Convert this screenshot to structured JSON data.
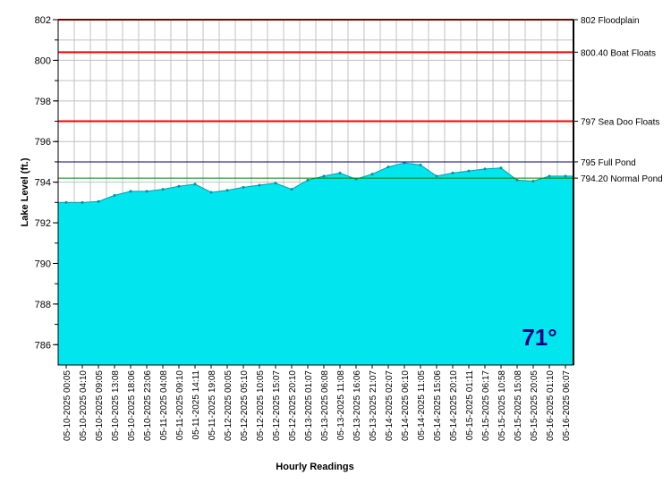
{
  "chart_data": {
    "type": "area",
    "xlabel": "Hourly Readings",
    "ylabel": "Lake Level (ft.)",
    "ylim": [
      785,
      802
    ],
    "yticks": [
      786,
      788,
      790,
      792,
      794,
      796,
      798,
      800,
      802
    ],
    "grid": true,
    "x_tick_labels": [
      "05-10-2025 00:05",
      "05-10-2025 04:10",
      "05-10-2025 09:05",
      "05-10-2025 13:08",
      "05-10-2025 18:06",
      "05-10-2025 23:06",
      "05-11-2025 04:08",
      "05-11-2025 09:10",
      "05-11-2025 14:11",
      "05-11-2025 19:08",
      "05-12-2025 00:05",
      "05-12-2025 05:10",
      "05-12-2025 10:05",
      "05-12-2025 15:07",
      "05-12-2025 20:10",
      "05-13-2025 01:07",
      "05-13-2025 06:08",
      "05-13-2025 11:08",
      "05-13-2025 16:06",
      "05-13-2025 21:07",
      "05-14-2025 02:07",
      "05-14-2025 06:10",
      "05-14-2025 11:05",
      "05-14-2025 15:06",
      "05-14-2025 20:10",
      "05-15-2025 01:11",
      "05-15-2025 06:17",
      "05-15-2025 10:58",
      "05-15-2025 15:08",
      "05-15-2025 20:05",
      "05-16-2025 01:10",
      "05-16-2025 06:07"
    ],
    "series": [
      {
        "color": "#00e5ee",
        "values": [
          793.0,
          793.0,
          793.05,
          793.35,
          793.55,
          793.55,
          793.65,
          793.8,
          793.9,
          793.5,
          793.6,
          793.75,
          793.85,
          793.95,
          793.65,
          794.1,
          794.3,
          794.45,
          794.15,
          794.4,
          794.75,
          794.95,
          794.85,
          794.3,
          794.45,
          794.55,
          794.65,
          794.7,
          794.1,
          794.05,
          794.3,
          794.3
        ]
      }
    ],
    "reference_lines": [
      {
        "value": 802,
        "label": "802 Floodplain",
        "color": "#ff0000"
      },
      {
        "value": 800.4,
        "label": "800.40 Boat Floats",
        "color": "#ff0000"
      },
      {
        "value": 797,
        "label": "797 Sea Doo Floats",
        "color": "#ff0000"
      },
      {
        "value": 795,
        "label": "795 Full Pond",
        "color": "#000080"
      },
      {
        "value": 794.2,
        "label": "794.20 Normal Pond",
        "color": "#008000"
      }
    ]
  },
  "temperature": "71°"
}
